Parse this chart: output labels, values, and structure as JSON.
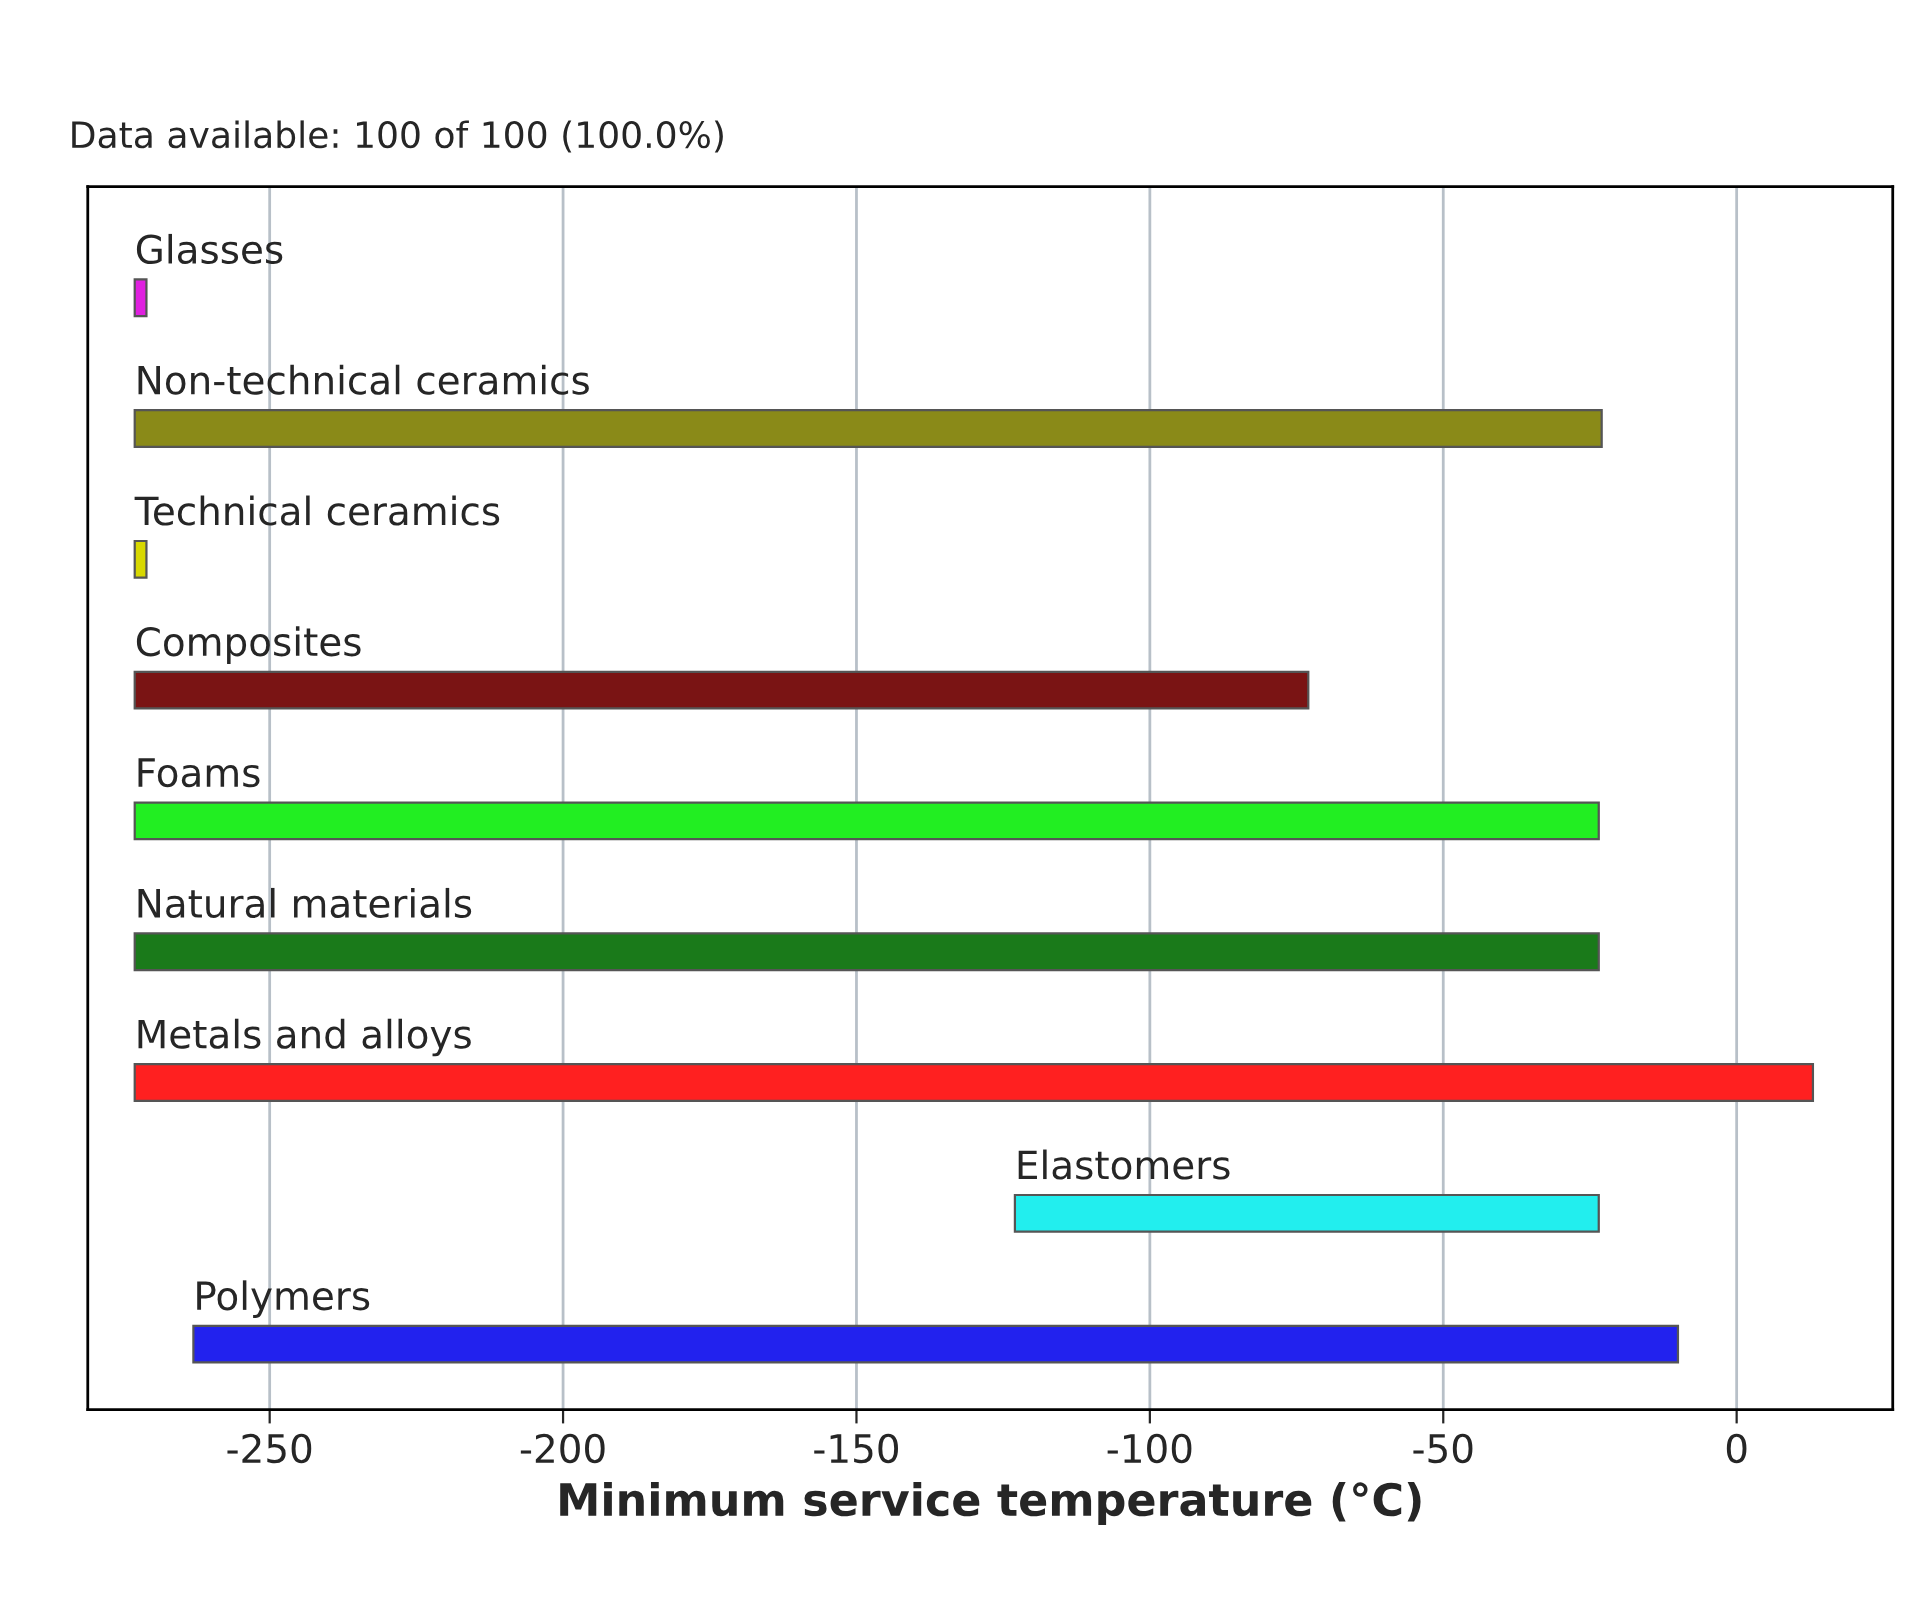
{
  "chart_data": {
    "type": "bar",
    "orientation": "horizontal",
    "categories": [
      "Glasses",
      "Non-technical ceramics",
      "Technical ceramics",
      "Composites",
      "Foams",
      "Natural materials",
      "Metals and alloys",
      "Elastomers",
      "Polymers"
    ],
    "base": [
      -273,
      -273,
      -273,
      -273,
      -273,
      -273,
      -273,
      -123,
      -263
    ],
    "values": [
      2,
      250,
      2,
      200,
      249.5,
      249.5,
      286,
      99.5,
      253
    ],
    "colors": [
      "#e020e0",
      "#8a8a18",
      "#d8d800",
      "#7a1414",
      "#22ee22",
      "#1a7a1a",
      "#ff2020",
      "#22eeee",
      "#2222ee"
    ],
    "xlabel": "Minimum service temperature (°C)",
    "xlim": [
      -281,
      26.6
    ],
    "xticks": [
      -250,
      -200,
      -150,
      -100,
      -50,
      0
    ],
    "grid": "x",
    "annotations": [
      "Data available: 100 of 100 (100.0%)"
    ]
  }
}
